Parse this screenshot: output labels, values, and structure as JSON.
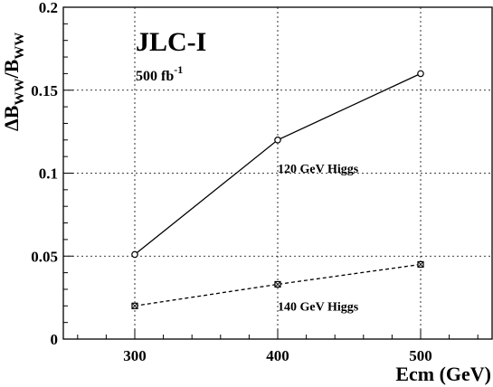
{
  "chart_data": {
    "type": "line",
    "title": "JLC-I",
    "subtitle": "500 fb",
    "subtitle_sup": "-1",
    "xlabel": "Ecm (GeV)",
    "ylabel": {
      "delta": "ΔB",
      "sub1": "WW",
      "slash": "/B",
      "sub2": "WW"
    },
    "xlim": [
      250,
      550
    ],
    "ylim": [
      0,
      0.2
    ],
    "x_ticks": [
      300,
      400,
      500
    ],
    "y_ticks": [
      0,
      0.05,
      0.1,
      0.15,
      0.2
    ],
    "x_tick_labels": [
      "300",
      "400",
      "500"
    ],
    "y_tick_labels": [
      "0",
      "0.05",
      "0.1",
      "0.15",
      "0.2"
    ],
    "grid": true,
    "x": [
      300,
      400,
      500
    ],
    "series": [
      {
        "name": "120 GeV Higgs",
        "values": [
          0.051,
          0.12,
          0.16
        ],
        "line_style": "solid",
        "marker": "circle",
        "color": "#000000"
      },
      {
        "name": "140 GeV Higgs",
        "values": [
          0.02,
          0.033,
          0.045
        ],
        "line_style": "dashed",
        "marker": "square",
        "color": "#000000"
      }
    ]
  }
}
